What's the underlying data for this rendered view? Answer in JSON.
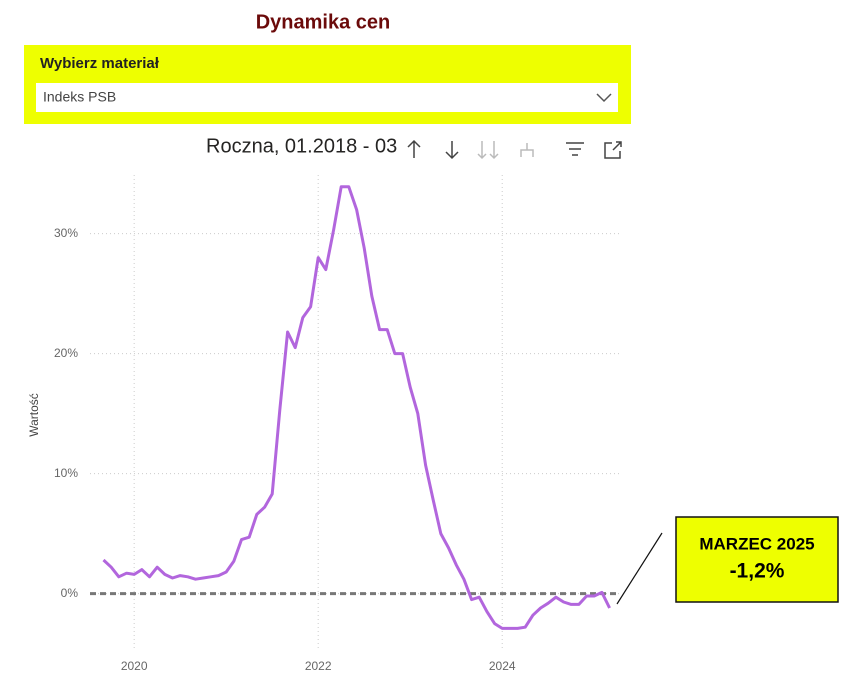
{
  "header": {
    "title": "Dynamika cen"
  },
  "slicer": {
    "label": "Wybierz materiał",
    "selected": "Indeks PSB"
  },
  "visual_header": {
    "title": "Roczna, 01.2018 - 03"
  },
  "annotation": {
    "title": "MARZEC 2025",
    "value": "-1,2%"
  },
  "chart_data": {
    "type": "line",
    "y_label": "Wartość",
    "color": "#b266dd",
    "x": [
      2019.667,
      2019.75,
      2019.833,
      2019.917,
      2020,
      2020.083,
      2020.167,
      2020.25,
      2020.333,
      2020.417,
      2020.5,
      2020.583,
      2020.667,
      2020.75,
      2020.833,
      2020.917,
      2021,
      2021.083,
      2021.167,
      2021.25,
      2021.333,
      2021.417,
      2021.5,
      2021.583,
      2021.667,
      2021.75,
      2021.833,
      2021.917,
      2022,
      2022.083,
      2022.167,
      2022.25,
      2022.333,
      2022.417,
      2022.5,
      2022.583,
      2022.667,
      2022.75,
      2022.833,
      2022.917,
      2023,
      2023.083,
      2023.167,
      2023.25,
      2023.333,
      2023.417,
      2023.5,
      2023.583,
      2023.667,
      2023.75,
      2023.833,
      2023.917,
      2024,
      2024.083,
      2024.167,
      2024.25,
      2024.333,
      2024.417,
      2024.5,
      2024.583,
      2024.667,
      2024.75,
      2024.833,
      2024.917,
      2025,
      2025.083,
      2025.167
    ],
    "values": [
      2.8,
      2.2,
      1.4,
      1.7,
      1.6,
      2.0,
      1.4,
      2.2,
      1.6,
      1.3,
      1.5,
      1.4,
      1.2,
      1.3,
      1.4,
      1.5,
      1.8,
      2.7,
      4.5,
      4.7,
      6.6,
      7.2,
      8.3,
      15.3,
      21.8,
      20.5,
      23.0,
      23.9,
      28.0,
      27.0,
      30.3,
      33.9,
      33.9,
      32.0,
      28.8,
      24.8,
      22.0,
      22.0,
      20.0,
      20.0,
      17.2,
      15.0,
      10.7,
      7.8,
      5.0,
      3.8,
      2.4,
      1.2,
      -0.5,
      -0.3,
      -1.5,
      -2.5,
      -2.9,
      -2.9,
      -2.9,
      -2.8,
      -1.8,
      -1.2,
      -0.8,
      -0.3,
      -0.7,
      -0.9,
      -0.9,
      -0.2,
      -0.2,
      0.1,
      -1.2
    ],
    "xlim": [
      2019.52,
      2025.28
    ],
    "xticks": [
      2020,
      2022,
      2024
    ],
    "ylim": [
      -4.7,
      35.3
    ],
    "yticks": [
      {
        "value": 0,
        "label": "0%"
      },
      {
        "value": 10,
        "label": "10%"
      },
      {
        "value": 20,
        "label": "20%"
      },
      {
        "value": 30,
        "label": "30%"
      }
    ],
    "grid": true,
    "reference_line": 0
  }
}
